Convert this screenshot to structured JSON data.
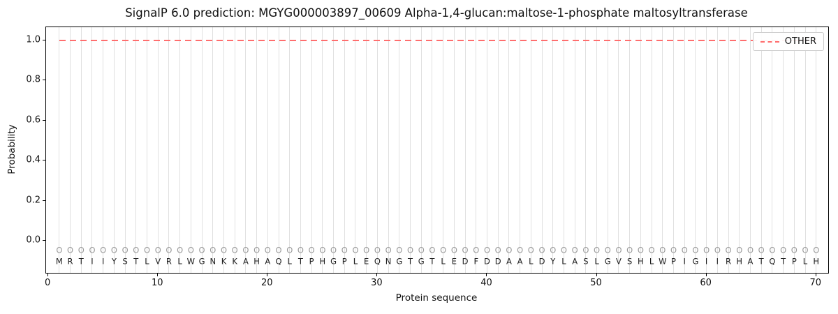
{
  "chart_data": {
    "type": "line",
    "title": "SignalP 6.0 prediction: MGYG000003897_00609 Alpha-1,4-glucan:maltose-1-phosphate maltosyltransferase",
    "xlabel": "Protein sequence",
    "ylabel": "Probability",
    "xlim": [
      -0.2,
      71.1
    ],
    "ylim": [
      -0.16,
      1.065
    ],
    "xticks": [
      0,
      10,
      20,
      30,
      40,
      50,
      60,
      70
    ],
    "yticks": [
      0.0,
      0.2,
      0.4,
      0.6,
      0.8,
      1.0
    ],
    "grid": "vertical line at every residue position",
    "legend": {
      "position": "upper right",
      "entries": [
        "OTHER"
      ]
    },
    "series": [
      {
        "name": "OTHER",
        "linestyle": "dashed",
        "color": "#ff6e6e",
        "x_start": 1,
        "x_end": 70,
        "constant_y": 1.0,
        "note": "OTHER probability is constant at 1.0 across all 70 residues"
      }
    ],
    "sequence": "MRTIIYSTLVRLWGNKKAHAQLTPHGPLEQNGTGTLEDFDDAALDYLASLGVSHLWPIGIIRHATQTPLH",
    "sequence_length": 70,
    "marker_char": "O",
    "marker_y": -0.05,
    "letter_y": -0.105
  },
  "colors": {
    "line": "#ff6e6e",
    "grid": "#e0e0e0",
    "marker": "#9a9a9a",
    "letter": "#1c1c1c",
    "spine": "#000000"
  }
}
